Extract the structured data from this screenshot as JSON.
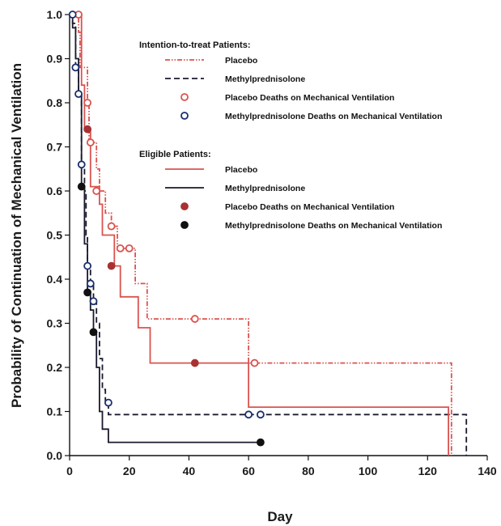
{
  "chart_data": {
    "type": "line",
    "title": "",
    "xlabel": "Day",
    "ylabel": "Probability of Continuation of Mechanical Ventilation",
    "xlim": [
      0,
      140
    ],
    "ylim": [
      0,
      1.0
    ],
    "xticks": [
      0,
      20,
      40,
      60,
      80,
      100,
      120,
      140
    ],
    "yticks": [
      0.0,
      0.1,
      0.2,
      0.3,
      0.4,
      0.5,
      0.6,
      0.7,
      0.8,
      0.9,
      1.0
    ],
    "grid": false,
    "legend_position": "top-right",
    "legend_groups": [
      {
        "title": "Intention-to-treat  Patients:",
        "entries": [
          0,
          1,
          4,
          5
        ]
      },
      {
        "title": "Eligible  Patients:",
        "entries": [
          2,
          3,
          6,
          7
        ]
      }
    ],
    "series": [
      {
        "name": "Placebo",
        "group": "Intention-to-treat",
        "kind": "step",
        "color": "#d9534f",
        "dash": "dashdot",
        "points": [
          [
            0,
            1.0
          ],
          [
            3,
            1.0
          ],
          [
            3,
            0.96
          ],
          [
            3.5,
            0.96
          ],
          [
            3.5,
            0.88
          ],
          [
            6,
            0.88
          ],
          [
            6,
            0.8
          ],
          [
            6.5,
            0.8
          ],
          [
            6.5,
            0.71
          ],
          [
            9,
            0.71
          ],
          [
            9,
            0.65
          ],
          [
            10,
            0.65
          ],
          [
            10,
            0.6
          ],
          [
            12,
            0.6
          ],
          [
            12,
            0.55
          ],
          [
            14,
            0.55
          ],
          [
            14,
            0.52
          ],
          [
            16,
            0.52
          ],
          [
            16,
            0.47
          ],
          [
            22,
            0.47
          ],
          [
            22,
            0.39
          ],
          [
            26,
            0.39
          ],
          [
            26,
            0.31
          ],
          [
            60,
            0.31
          ],
          [
            60,
            0.21
          ],
          [
            128,
            0.21
          ],
          [
            128,
            0.0
          ]
        ]
      },
      {
        "name": "Methylprednisolone",
        "group": "Intention-to-treat",
        "kind": "step",
        "color": "#1a1a2e",
        "dash": "dashed",
        "points": [
          [
            0,
            1.0
          ],
          [
            1,
            1.0
          ],
          [
            1,
            0.98
          ],
          [
            2,
            0.98
          ],
          [
            2,
            0.88
          ],
          [
            3,
            0.88
          ],
          [
            3,
            0.82
          ],
          [
            4,
            0.82
          ],
          [
            4,
            0.66
          ],
          [
            5,
            0.66
          ],
          [
            5,
            0.6
          ],
          [
            5.5,
            0.6
          ],
          [
            5.5,
            0.5
          ],
          [
            6,
            0.5
          ],
          [
            6,
            0.43
          ],
          [
            7,
            0.43
          ],
          [
            7,
            0.39
          ],
          [
            8,
            0.39
          ],
          [
            8,
            0.35
          ],
          [
            9,
            0.35
          ],
          [
            9,
            0.3
          ],
          [
            10,
            0.3
          ],
          [
            10,
            0.22
          ],
          [
            11,
            0.22
          ],
          [
            11,
            0.15
          ],
          [
            12,
            0.15
          ],
          [
            12,
            0.12
          ],
          [
            13,
            0.12
          ],
          [
            13,
            0.093
          ],
          [
            133,
            0.093
          ],
          [
            133,
            0.0
          ]
        ]
      },
      {
        "name": "Placebo",
        "group": "Eligible",
        "kind": "step",
        "color": "#d9534f",
        "dash": "solid",
        "points": [
          [
            0,
            1.0
          ],
          [
            4,
            1.0
          ],
          [
            4,
            0.84
          ],
          [
            5,
            0.84
          ],
          [
            5,
            0.74
          ],
          [
            7,
            0.74
          ],
          [
            7,
            0.61
          ],
          [
            10,
            0.61
          ],
          [
            10,
            0.57
          ],
          [
            11,
            0.57
          ],
          [
            11,
            0.5
          ],
          [
            15,
            0.5
          ],
          [
            15,
            0.43
          ],
          [
            17,
            0.43
          ],
          [
            17,
            0.36
          ],
          [
            23,
            0.36
          ],
          [
            23,
            0.29
          ],
          [
            27,
            0.29
          ],
          [
            27,
            0.21
          ],
          [
            60,
            0.21
          ],
          [
            60,
            0.11
          ],
          [
            127,
            0.11
          ],
          [
            127,
            0.0
          ]
        ]
      },
      {
        "name": "Methylprednisolone",
        "group": "Eligible",
        "kind": "step",
        "color": "#1a1a2e",
        "dash": "solid",
        "points": [
          [
            0,
            1.0
          ],
          [
            1,
            1.0
          ],
          [
            1,
            0.97
          ],
          [
            2,
            0.97
          ],
          [
            2,
            0.9
          ],
          [
            3,
            0.9
          ],
          [
            3,
            0.82
          ],
          [
            4,
            0.82
          ],
          [
            4,
            0.61
          ],
          [
            5,
            0.61
          ],
          [
            5,
            0.48
          ],
          [
            6,
            0.48
          ],
          [
            6,
            0.37
          ],
          [
            7,
            0.37
          ],
          [
            7,
            0.33
          ],
          [
            8,
            0.33
          ],
          [
            8,
            0.28
          ],
          [
            9,
            0.28
          ],
          [
            9,
            0.2
          ],
          [
            10,
            0.2
          ],
          [
            10,
            0.1
          ],
          [
            11,
            0.1
          ],
          [
            11,
            0.06
          ],
          [
            13,
            0.06
          ],
          [
            13,
            0.03
          ],
          [
            64,
            0.03
          ]
        ]
      },
      {
        "name": "Placebo Deaths on Mechanical Ventilation",
        "group": "Intention-to-treat",
        "kind": "marker",
        "color": "#d9534f",
        "fill": "open",
        "points": [
          [
            3,
            1.0
          ],
          [
            6,
            0.8
          ],
          [
            7,
            0.71
          ],
          [
            9,
            0.6
          ],
          [
            14,
            0.52
          ],
          [
            17,
            0.47
          ],
          [
            20,
            0.47
          ],
          [
            42,
            0.31
          ],
          [
            62,
            0.21
          ]
        ]
      },
      {
        "name": "Methylprednisolone Deaths on Mechanical Ventilation",
        "group": "Intention-to-treat",
        "kind": "marker",
        "color": "#1a2e6e",
        "fill": "open",
        "points": [
          [
            1,
            1.0
          ],
          [
            2,
            0.88
          ],
          [
            3,
            0.82
          ],
          [
            4,
            0.66
          ],
          [
            6,
            0.43
          ],
          [
            7,
            0.39
          ],
          [
            8,
            0.35
          ],
          [
            13,
            0.12
          ],
          [
            60,
            0.093
          ],
          [
            64,
            0.093
          ]
        ]
      },
      {
        "name": "Placebo Deaths on Mechanical Ventilation",
        "group": "Eligible",
        "kind": "marker",
        "color": "#a83232",
        "fill": "solid",
        "points": [
          [
            6,
            0.74
          ],
          [
            14,
            0.43
          ],
          [
            42,
            0.21
          ]
        ]
      },
      {
        "name": "Methylprednisolone Deaths on Mechanical Ventilation",
        "group": "Eligible",
        "kind": "marker",
        "color": "#111111",
        "fill": "solid",
        "points": [
          [
            4,
            0.61
          ],
          [
            6,
            0.37
          ],
          [
            8,
            0.28
          ],
          [
            64,
            0.03
          ]
        ]
      }
    ]
  }
}
